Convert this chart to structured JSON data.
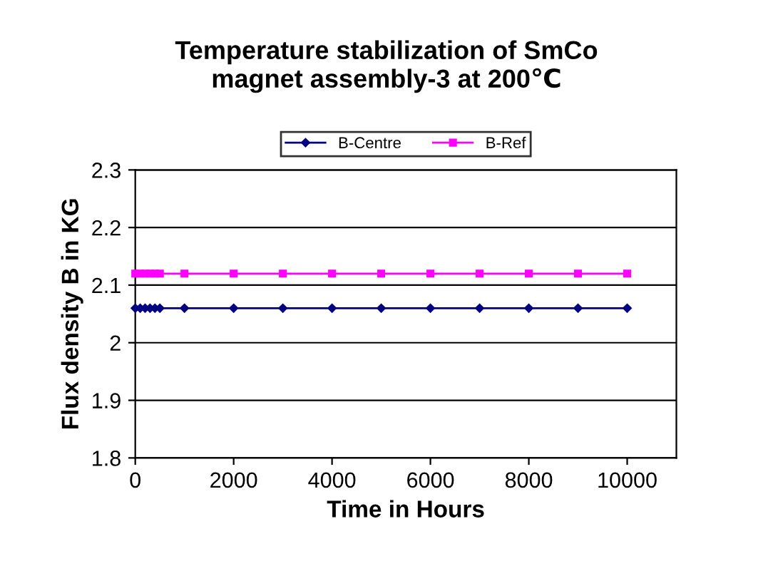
{
  "chart_data": {
    "type": "line",
    "title": "Temperature stabilization of SmCo\nmagnet assembly-3 at 200℃",
    "xlabel": "Time in Hours",
    "ylabel": "Flux density B in KG",
    "x": [
      0,
      100,
      200,
      300,
      400,
      500,
      1000,
      2000,
      3000,
      4000,
      5000,
      6000,
      7000,
      8000,
      9000,
      10000
    ],
    "series": [
      {
        "name": "B-Centre",
        "color": "#000080",
        "marker": "diamond",
        "values": [
          2.06,
          2.06,
          2.06,
          2.06,
          2.06,
          2.06,
          2.06,
          2.06,
          2.06,
          2.06,
          2.06,
          2.06,
          2.06,
          2.06,
          2.06,
          2.06
        ]
      },
      {
        "name": "B-Ref",
        "color": "#ff00ff",
        "marker": "square",
        "values": [
          2.12,
          2.12,
          2.12,
          2.12,
          2.12,
          2.12,
          2.12,
          2.12,
          2.12,
          2.12,
          2.12,
          2.12,
          2.12,
          2.12,
          2.12,
          2.12
        ]
      }
    ],
    "xlim": [
      0,
      11000
    ],
    "xticks": [
      0,
      2000,
      4000,
      6000,
      8000,
      10000
    ],
    "ylim": [
      1.8,
      2.3
    ],
    "yticks": [
      1.8,
      1.9,
      2,
      2.1,
      2.2,
      2.3
    ],
    "grid": "y",
    "legend": "top",
    "line_style": "solid"
  }
}
